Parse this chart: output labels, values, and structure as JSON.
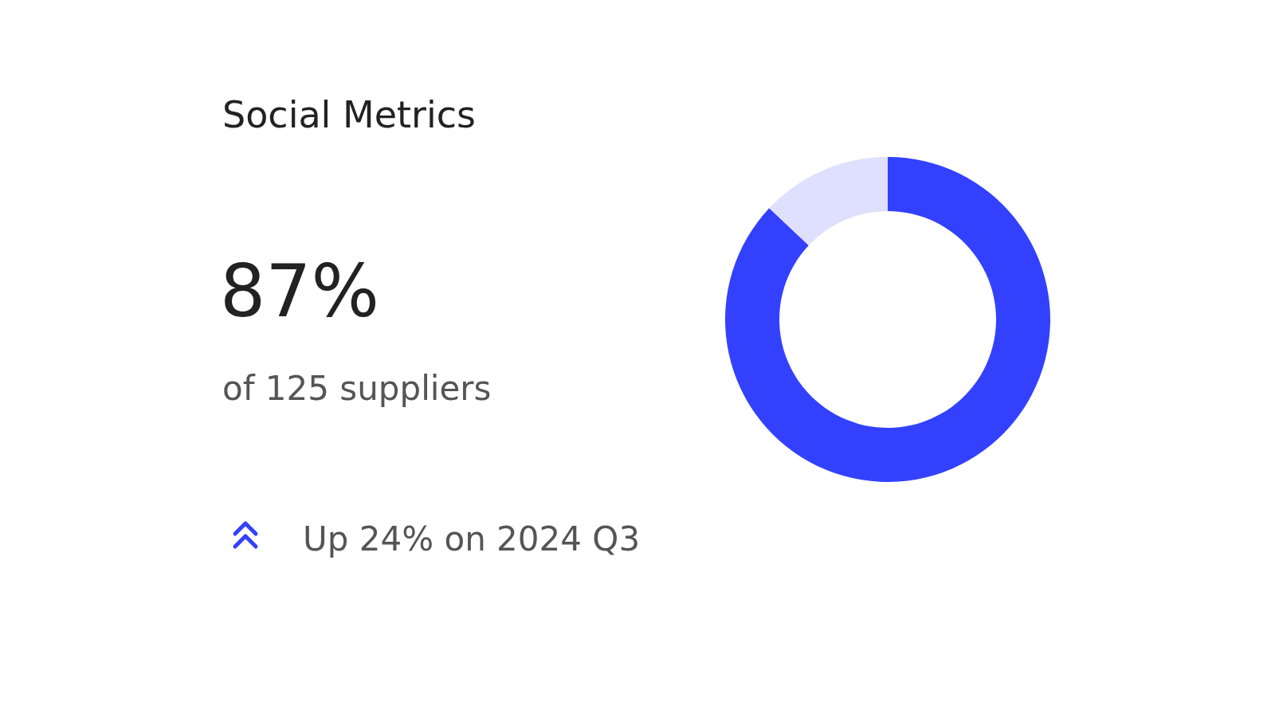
{
  "chart_data": {
    "type": "donut",
    "title": "Social Metrics",
    "categories": [
      null,
      null
    ],
    "values": [
      87,
      13
    ],
    "colors": [
      "#3341ff",
      "#dfe0fd"
    ],
    "annotations": [
      "87%",
      "of 125 suppliers",
      "Up 24% on 2024 Q3"
    ]
  }
}
